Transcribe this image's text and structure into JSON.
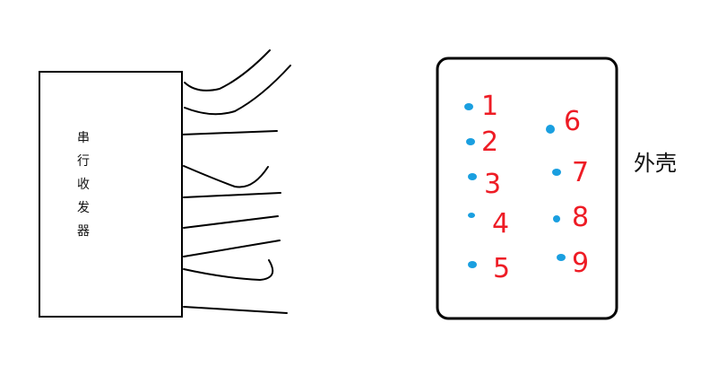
{
  "transceiver": {
    "label_chars": [
      "串",
      "行",
      "收",
      "发",
      "器"
    ],
    "border_color": "#000000"
  },
  "shell": {
    "label": "外壳",
    "border_color": "#000000"
  },
  "pins": {
    "dot_color": "#1a9fe0",
    "number_color": "#ee1c25",
    "items": [
      {
        "number": "1"
      },
      {
        "number": "2"
      },
      {
        "number": "3"
      },
      {
        "number": "4"
      },
      {
        "number": "5"
      },
      {
        "number": "6"
      },
      {
        "number": "7"
      },
      {
        "number": "8"
      },
      {
        "number": "9"
      }
    ]
  }
}
